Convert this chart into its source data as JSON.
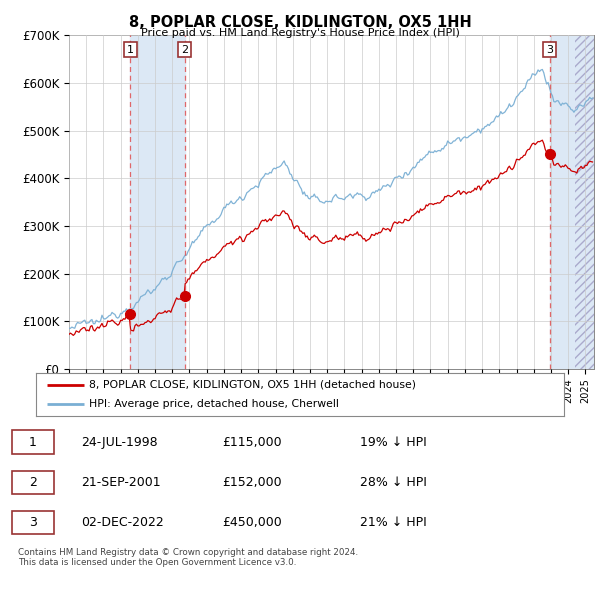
{
  "title": "8, POPLAR CLOSE, KIDLINGTON, OX5 1HH",
  "subtitle": "Price paid vs. HM Land Registry's House Price Index (HPI)",
  "ylim": [
    0,
    700000
  ],
  "yticks": [
    0,
    100000,
    200000,
    300000,
    400000,
    500000,
    600000,
    700000
  ],
  "ytick_labels": [
    "£0",
    "£100K",
    "£200K",
    "£300K",
    "£400K",
    "£500K",
    "£600K",
    "£700K"
  ],
  "sale_year_floats": [
    1998.558,
    2001.722,
    2022.917
  ],
  "sale_prices": [
    115000,
    152000,
    450000
  ],
  "sale_labels": [
    "1",
    "2",
    "3"
  ],
  "xmin": 1995.0,
  "xmax": 2025.5,
  "legend_house": "8, POPLAR CLOSE, KIDLINGTON, OX5 1HH (detached house)",
  "legend_hpi": "HPI: Average price, detached house, Cherwell",
  "table_rows": [
    [
      "1",
      "24-JUL-1998",
      "£115,000",
      "19% ↓ HPI"
    ],
    [
      "2",
      "21-SEP-2001",
      "£152,000",
      "28% ↓ HPI"
    ],
    [
      "3",
      "02-DEC-2022",
      "£450,000",
      "21% ↓ HPI"
    ]
  ],
  "footer": "Contains HM Land Registry data © Crown copyright and database right 2024.\nThis data is licensed under the Open Government Licence v3.0.",
  "house_color": "#cc0000",
  "hpi_color": "#7aafd4",
  "shade_color": "#dce8f5",
  "vline_color": "#e05050",
  "grid_color": "#cccccc",
  "background_color": "#ffffff"
}
